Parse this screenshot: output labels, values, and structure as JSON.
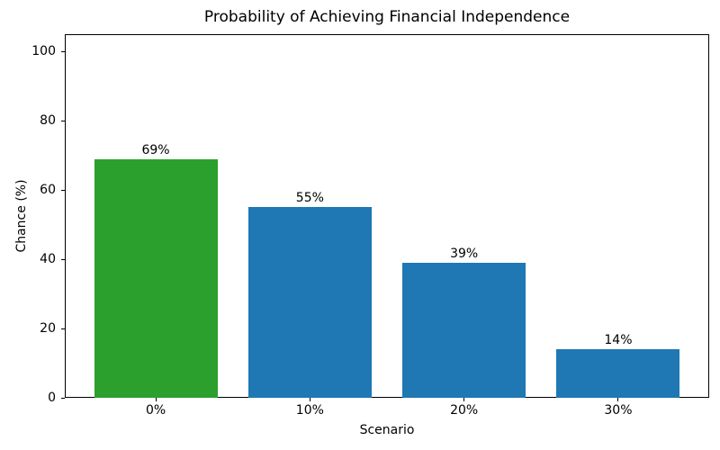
{
  "chart_data": {
    "type": "bar",
    "title": "Probability of Achieving Financial Independence",
    "xlabel": "Scenario",
    "ylabel": "Chance (%)",
    "categories": [
      "0%",
      "10%",
      "20%",
      "30%"
    ],
    "values": [
      69,
      55,
      39,
      14
    ],
    "bar_labels": [
      "69%",
      "55%",
      "39%",
      "14%"
    ],
    "bar_colors": [
      "#2ca02c",
      "#1f77b4",
      "#1f77b4",
      "#1f77b4"
    ],
    "yticks": [
      0,
      20,
      40,
      60,
      80,
      100
    ],
    "ylim": [
      0,
      105
    ],
    "grid": false,
    "legend": "none",
    "background_color": "#ffffff",
    "spine_color": "#000000",
    "text_color": "#000000"
  }
}
